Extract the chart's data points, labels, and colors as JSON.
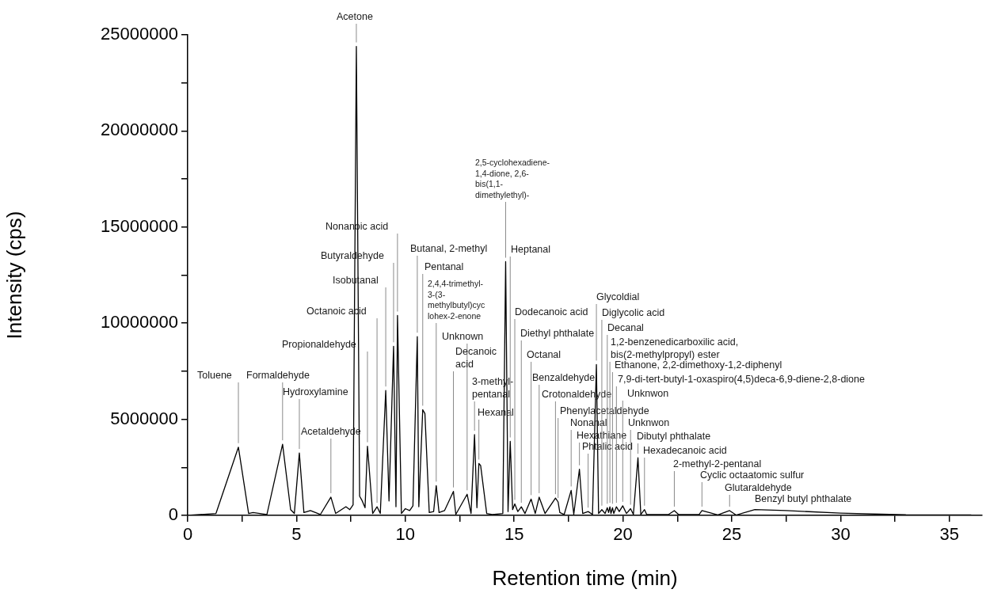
{
  "chart_data": {
    "type": "line",
    "xlabel": "Retention time (min)",
    "ylabel": "Intensity (cps)",
    "xlim": [
      0,
      36.5
    ],
    "xticks": [
      0,
      {
        "value": 2.5,
        "label": null
      },
      5,
      {
        "value": 7.5,
        "label": null
      },
      10,
      {
        "value": 12.5,
        "label": null
      },
      15,
      {
        "value": 17.5,
        "label": null
      },
      20,
      {
        "value": 22.5,
        "label": null
      },
      25,
      {
        "value": 27.5,
        "label": null
      },
      30,
      {
        "value": 32.5,
        "label": null
      },
      35
    ],
    "ylim": [
      0,
      25000000
    ],
    "yticks": [
      0,
      {
        "value": 2500000,
        "label": null
      },
      5000000,
      {
        "value": 7500000,
        "label": null
      },
      10000000,
      {
        "value": 12500000,
        "label": null
      },
      15000000,
      {
        "value": 17500000,
        "label": null
      },
      20000000,
      {
        "value": 22500000,
        "label": null
      },
      25000000
    ],
    "grid": false,
    "legend": false,
    "marker": "none",
    "line_style": "solid",
    "series": [
      {
        "color": "#000000",
        "x": [
          0,
          1.3,
          2.33,
          2.8,
          3.0,
          3.64,
          4.36,
          4.73,
          4.9,
          5.13,
          5.34,
          5.64,
          6.1,
          6.58,
          6.8,
          7.27,
          7.45,
          7.6,
          7.75,
          7.9,
          8.0,
          8.15,
          8.26,
          8.5,
          8.7,
          8.85,
          9.1,
          9.25,
          9.46,
          9.57,
          9.64,
          9.82,
          10.0,
          10.2,
          10.35,
          10.55,
          10.62,
          10.8,
          10.9,
          11.1,
          11.3,
          11.42,
          11.55,
          11.8,
          12.21,
          12.32,
          12.84,
          13.02,
          13.18,
          13.29,
          13.38,
          13.46,
          13.74,
          14.0,
          14.48,
          14.61,
          14.72,
          14.82,
          14.93,
          15.03,
          15.17,
          15.33,
          15.5,
          15.78,
          15.97,
          16.15,
          16.42,
          16.9,
          17.02,
          17.1,
          17.3,
          17.62,
          17.74,
          18.0,
          18.15,
          18.4,
          18.6,
          18.78,
          18.88,
          19.03,
          19.18,
          19.28,
          19.34,
          19.4,
          19.45,
          19.52,
          19.58,
          19.7,
          19.83,
          19.99,
          20.16,
          20.35,
          20.48,
          20.69,
          20.82,
          20.99,
          21.09,
          22.1,
          22.36,
          22.55,
          23.5,
          23.63,
          24.36,
          24.9,
          25.2,
          26.06,
          27.5,
          30,
          33,
          36
        ],
        "values": [
          0,
          100000,
          3550000,
          100000,
          150000,
          50000,
          3700000,
          300000,
          100000,
          3250000,
          150000,
          250000,
          50000,
          950000,
          100000,
          450000,
          300000,
          550000,
          24400000,
          1000000,
          800000,
          400000,
          3600000,
          100000,
          450000,
          100000,
          6500000,
          750000,
          8800000,
          450000,
          10400000,
          100000,
          350000,
          250000,
          500000,
          9300000,
          450000,
          5500000,
          5300000,
          150000,
          200000,
          1550000,
          150000,
          250000,
          1250000,
          50000,
          1100000,
          100000,
          4200000,
          400000,
          2700000,
          2600000,
          100000,
          50000,
          100000,
          13200000,
          200000,
          3850000,
          300000,
          600000,
          200000,
          450000,
          100000,
          850000,
          100000,
          950000,
          100000,
          900000,
          700000,
          150000,
          50000,
          1300000,
          50000,
          2400000,
          100000,
          200000,
          50000,
          7850000,
          100000,
          300000,
          100000,
          400000,
          150000,
          450000,
          100000,
          400000,
          100000,
          450000,
          200000,
          500000,
          100000,
          350000,
          50000,
          3000000,
          50000,
          300000,
          50000,
          50000,
          250000,
          50000,
          50000,
          250000,
          30000,
          250000,
          20000,
          300000,
          250000,
          120000,
          30000,
          20000
        ]
      }
    ],
    "annotations": [
      {
        "text": "Toluene",
        "x": 2.33,
        "y": 3550000
      },
      {
        "text": "Formaldehyde",
        "x": 4.36,
        "y": 3700000
      },
      {
        "text": "Hydroxylamine",
        "x": 5.13,
        "y": 3250000
      },
      {
        "text": "Acetaldehyde",
        "x": 6.58,
        "y": 950000
      },
      {
        "text": "Acetone",
        "x": 7.75,
        "y": 24400000
      },
      {
        "text": "Propionaldehyde",
        "x": 8.26,
        "y": 3600000
      },
      {
        "text": "Octanoic acid",
        "x": 8.7,
        "y": 450000
      },
      {
        "text": "Isobutanal",
        "x": 9.1,
        "y": 6500000
      },
      {
        "text": "Butyraldehyde",
        "x": 9.46,
        "y": 8800000
      },
      {
        "text": "Nonanoic acid",
        "x": 9.64,
        "y": 10400000
      },
      {
        "text": "Butanal, 2-methyl",
        "x": 10.55,
        "y": 9300000
      },
      {
        "text": "Pentanal",
        "x": 10.8,
        "y": 5500000
      },
      {
        "text": "2,4,4-trimethyl-\n3-(3-\nmethylbutyl)cyc\nlohex-2-enone",
        "x": 11.42,
        "y": 1550000
      },
      {
        "text": "Unknown",
        "x": 12.84,
        "y": 1100000
      },
      {
        "text": "Decanoic\nacid",
        "x": 12.21,
        "y": 1250000
      },
      {
        "text": "3-methyl-\npentanal",
        "x": 13.18,
        "y": 4200000
      },
      {
        "text": "Hexanal",
        "x": 13.38,
        "y": 2700000
      },
      {
        "text": "2,5-cyclohexadiene-\n1,4-dione, 2,6-\nbis(1,1-\ndimethylethyl)-",
        "x": 14.61,
        "y": 13200000
      },
      {
        "text": "Heptanal",
        "x": 14.82,
        "y": 3850000
      },
      {
        "text": "Dodecanoic acid",
        "x": 15.03,
        "y": 600000
      },
      {
        "text": "Diethyl phthalate",
        "x": 15.33,
        "y": 450000
      },
      {
        "text": "Octanal",
        "x": 15.78,
        "y": 850000
      },
      {
        "text": "Benzaldehyde",
        "x": 16.15,
        "y": 950000
      },
      {
        "text": "Crotonaldehyde",
        "x": 16.9,
        "y": 900000
      },
      {
        "text": "Phenylacetaldehyde",
        "x": 17.02,
        "y": 700000
      },
      {
        "text": "Nonanal",
        "x": 17.62,
        "y": 1300000
      },
      {
        "text": "Hexathiane",
        "x": 18.0,
        "y": 2400000
      },
      {
        "text": "Phtalic acid",
        "x": 18.4,
        "y": 200000
      },
      {
        "text": "Glycoldial",
        "x": 18.78,
        "y": 7850000
      },
      {
        "text": "Diglycolic acid",
        "x": 19.03,
        "y": 300000
      },
      {
        "text": "Decanal",
        "x": 19.28,
        "y": 400000
      },
      {
        "text": "1,2-benzenedicarboxilic acid,\nbis(2-methylpropyl) ester",
        "x": 19.4,
        "y": 450000
      },
      {
        "text": "Ethanone, 2,2-dimethoxy-1,2-diphenyl",
        "x": 19.52,
        "y": 400000
      },
      {
        "text": "7,9-di-tert-butyl-1-oxaspiro(4,5)deca-6,9-diene-2,8-dione",
        "x": 19.7,
        "y": 450000
      },
      {
        "text": "Unknwon",
        "x": 19.99,
        "y": 500000
      },
      {
        "text": "Unknwon",
        "x": 20.35,
        "y": 350000
      },
      {
        "text": "Dibutyl phthalate",
        "x": 20.69,
        "y": 3000000
      },
      {
        "text": "Hexadecanoic acid",
        "x": 20.99,
        "y": 300000
      },
      {
        "text": "2-methyl-2-pentanal",
        "x": 22.36,
        "y": 250000
      },
      {
        "text": "Cyclic octaatomic sulfur",
        "x": 23.63,
        "y": 250000
      },
      {
        "text": "Glutaraldehyde",
        "x": 24.9,
        "y": 250000
      },
      {
        "text": "Benzyl butyl phthalate",
        "x": 26.06,
        "y": 300000
      }
    ]
  }
}
